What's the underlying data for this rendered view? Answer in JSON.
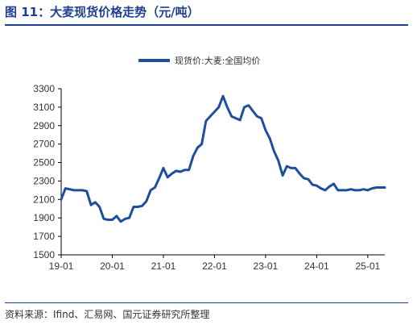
{
  "figure": {
    "label": "图 11：",
    "title": "大麦现货价格走势（元/吨）"
  },
  "source": "资料来源：Ifind、汇易网、国元证券研究所整理",
  "chart_data": {
    "type": "line",
    "title": "大麦现货价格走势（元/吨）",
    "xlabel": "",
    "ylabel": "",
    "x_tick_labels": [
      "19-01",
      "20-01",
      "21-01",
      "22-01",
      "23-01",
      "24-01",
      "25-01"
    ],
    "y_ticks": [
      1500,
      1700,
      1900,
      2100,
      2300,
      2500,
      2700,
      2900,
      3100,
      3300
    ],
    "ylim": [
      1500,
      3300
    ],
    "xlim": [
      "2019-01",
      "2025-05"
    ],
    "grid": false,
    "legend_position": "top-center",
    "series_color": "#1f4e9c",
    "series": [
      {
        "name": "现货价:大麦:全国均价",
        "x": [
          "2019-01",
          "2019-02",
          "2019-03",
          "2019-04",
          "2019-05",
          "2019-06",
          "2019-07",
          "2019-08",
          "2019-09",
          "2019-10",
          "2019-11",
          "2019-12",
          "2020-01",
          "2020-02",
          "2020-03",
          "2020-04",
          "2020-05",
          "2020-06",
          "2020-07",
          "2020-08",
          "2020-09",
          "2020-10",
          "2020-11",
          "2020-12",
          "2021-01",
          "2021-02",
          "2021-03",
          "2021-04",
          "2021-05",
          "2021-06",
          "2021-07",
          "2021-08",
          "2021-09",
          "2021-10",
          "2021-11",
          "2021-12",
          "2022-01",
          "2022-02",
          "2022-03",
          "2022-04",
          "2022-05",
          "2022-06",
          "2022-07",
          "2022-08",
          "2022-09",
          "2022-10",
          "2022-11",
          "2022-12",
          "2023-01",
          "2023-02",
          "2023-03",
          "2023-04",
          "2023-05",
          "2023-06",
          "2023-07",
          "2023-08",
          "2023-09",
          "2023-10",
          "2023-11",
          "2023-12",
          "2024-01",
          "2024-02",
          "2024-03",
          "2024-04",
          "2024-05",
          "2024-06",
          "2024-07",
          "2024-08",
          "2024-09",
          "2024-10",
          "2024-11",
          "2024-12",
          "2025-01",
          "2025-02",
          "2025-03",
          "2025-04",
          "2025-05"
        ],
        "values": [
          2100,
          2220,
          2210,
          2200,
          2200,
          2200,
          2190,
          2040,
          2070,
          2020,
          1890,
          1880,
          1880,
          1920,
          1860,
          1890,
          1900,
          2020,
          2020,
          2030,
          2080,
          2200,
          2230,
          2330,
          2440,
          2340,
          2380,
          2410,
          2400,
          2420,
          2420,
          2570,
          2660,
          2700,
          2950,
          3000,
          3050,
          3100,
          3220,
          3100,
          3000,
          2980,
          2960,
          3100,
          3120,
          3060,
          3000,
          2980,
          2850,
          2760,
          2620,
          2520,
          2360,
          2460,
          2440,
          2440,
          2380,
          2330,
          2320,
          2260,
          2250,
          2220,
          2200,
          2240,
          2270,
          2200,
          2200,
          2200,
          2210,
          2200,
          2200,
          2210,
          2200,
          2220,
          2230,
          2230,
          2230
        ]
      }
    ]
  }
}
